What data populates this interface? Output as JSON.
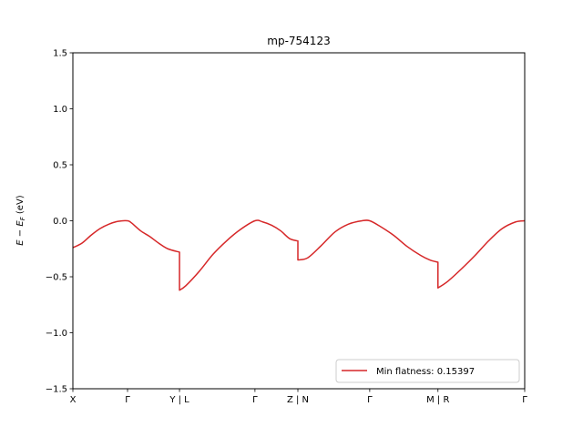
{
  "chart_data": {
    "type": "line",
    "title": "mp-754123",
    "xlabel": "",
    "ylabel": "E − E_F (eV)",
    "ylim": [
      -1.5,
      1.5
    ],
    "yticks": [
      -1.5,
      -1.0,
      -0.5,
      0.0,
      0.5,
      1.0,
      1.5
    ],
    "ytick_labels": [
      "−1.5",
      "−1.0",
      "−0.5",
      "0.0",
      "0.5",
      "1.0",
      "1.5"
    ],
    "xlim": [
      0,
      1
    ],
    "xticks": [
      0,
      0.121,
      0.236,
      0.403,
      0.498,
      0.657,
      0.808,
      1.0
    ],
    "xtick_labels": [
      "X",
      "Γ",
      "Y | L",
      "Γ",
      "Z | N",
      "Γ",
      "M | R",
      "Γ"
    ],
    "grid": false,
    "legend_position": "lower right",
    "series": [
      {
        "name": "Min flatness: 0.15397",
        "color": "#d62728",
        "x": [
          0,
          0.02,
          0.04,
          0.06,
          0.08,
          0.1,
          0.121,
          0.13,
          0.15,
          0.17,
          0.19,
          0.21,
          0.236,
          0.236,
          0.25,
          0.28,
          0.31,
          0.34,
          0.37,
          0.403,
          0.42,
          0.44,
          0.46,
          0.48,
          0.498,
          0.498,
          0.52,
          0.55,
          0.58,
          0.61,
          0.64,
          0.657,
          0.68,
          0.71,
          0.74,
          0.77,
          0.79,
          0.808,
          0.808,
          0.83,
          0.86,
          0.89,
          0.92,
          0.95,
          0.98,
          1.0
        ],
        "y": [
          -0.24,
          -0.2,
          -0.13,
          -0.07,
          -0.03,
          -0.005,
          0.0,
          -0.02,
          -0.09,
          -0.14,
          -0.2,
          -0.25,
          -0.28,
          -0.62,
          -0.58,
          -0.45,
          -0.3,
          -0.18,
          -0.08,
          0.0,
          -0.01,
          -0.04,
          -0.09,
          -0.16,
          -0.18,
          -0.35,
          -0.33,
          -0.22,
          -0.1,
          -0.03,
          0.0,
          0.0,
          -0.05,
          -0.13,
          -0.23,
          -0.31,
          -0.35,
          -0.37,
          -0.6,
          -0.54,
          -0.43,
          -0.31,
          -0.18,
          -0.07,
          -0.01,
          0.0
        ]
      }
    ]
  }
}
